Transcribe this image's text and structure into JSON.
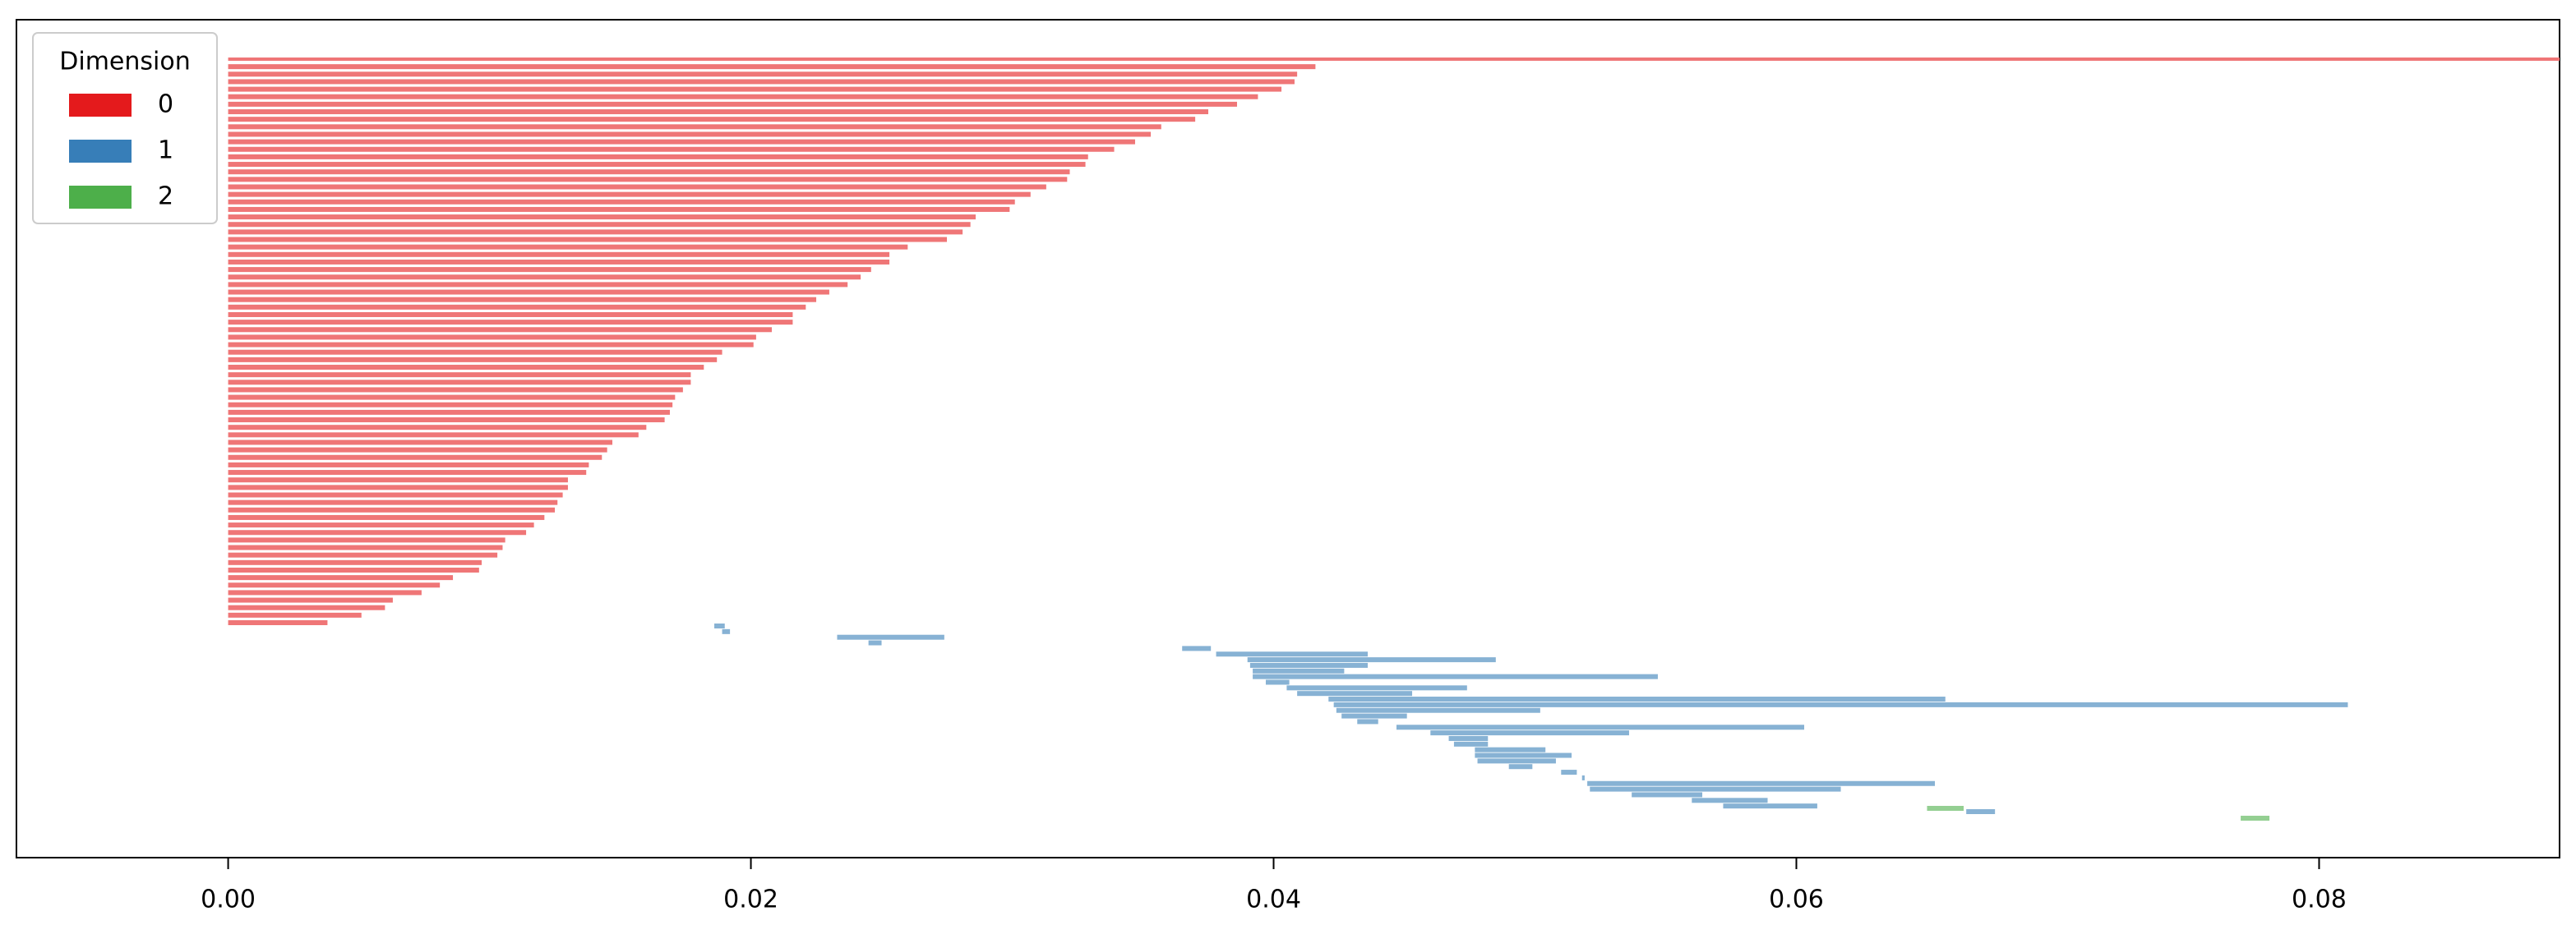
{
  "chart_data": {
    "type": "barcode",
    "legend_title": "Dimension",
    "legend": "upper left",
    "xlim": [
      -0.0081,
      0.0892
    ],
    "xticks": [
      {
        "value": 0,
        "label": "0.00"
      },
      0.02,
      0.04,
      0.06,
      0.08
    ],
    "series": [
      {
        "name": "0",
        "color": "#e41a1c",
        "births": [
          0,
          0,
          0,
          0,
          0,
          0,
          0,
          0,
          0,
          0,
          0,
          0,
          0,
          0,
          0,
          0,
          0,
          0,
          0,
          0,
          0,
          0,
          0,
          0,
          0,
          0,
          0,
          0,
          0,
          0,
          0,
          0,
          0,
          0,
          0,
          0,
          0,
          0,
          0,
          0,
          0,
          0,
          0,
          0,
          0,
          0,
          0,
          0,
          0,
          0,
          0,
          0,
          0,
          0,
          0,
          0,
          0,
          0,
          0,
          0,
          0,
          0,
          0,
          0,
          0,
          0,
          0,
          0,
          0,
          0,
          0,
          0,
          0,
          0,
          0,
          0
        ],
        "deaths": [
          null,
          0.0416,
          0.0409,
          0.0408,
          0.0403,
          0.0394,
          0.0386,
          0.0375,
          0.037,
          0.0357,
          0.0353,
          0.0347,
          0.0339,
          0.0329,
          0.0328,
          0.0322,
          0.0321,
          0.0313,
          0.0307,
          0.0301,
          0.0299,
          0.0286,
          0.0284,
          0.0281,
          0.0275,
          0.026,
          0.0253,
          0.0253,
          0.0246,
          0.0242,
          0.0237,
          0.023,
          0.0225,
          0.0221,
          0.0216,
          0.0216,
          0.0208,
          0.0202,
          0.0201,
          0.0189,
          0.0187,
          0.0182,
          0.0177,
          0.0177,
          0.0174,
          0.0171,
          0.017,
          0.0169,
          0.0167,
          0.016,
          0.0157,
          0.0147,
          0.0145,
          0.0143,
          0.0138,
          0.0137,
          0.013,
          0.013,
          0.0128,
          0.0126,
          0.0125,
          0.0121,
          0.0117,
          0.0114,
          0.0106,
          0.0105,
          0.0103,
          0.0097,
          0.0096,
          0.0086,
          0.0081,
          0.0074,
          0.0063,
          0.006,
          0.0051,
          0.0038
        ]
      },
      {
        "name": "1",
        "color": "#377eb8",
        "births": [
          0.0186,
          0.0189,
          0.0233,
          0.0245,
          0.0365,
          0.0378,
          0.039,
          0.0391,
          0.0392,
          0.0392,
          0.0397,
          0.0405,
          0.0409,
          0.0421,
          0.0423,
          0.0424,
          0.0426,
          0.0432,
          0.0447,
          0.046,
          0.0467,
          0.0469,
          0.0477,
          0.0477,
          0.0478,
          0.049,
          0.051,
          0.0518,
          0.052,
          0.0521,
          0.0537,
          0.056,
          0.0572,
          0.0665
        ],
        "deaths": [
          0.019,
          0.0192,
          0.0274,
          0.025,
          0.0376,
          0.0436,
          0.0485,
          0.0436,
          0.0427,
          0.0547,
          0.0406,
          0.0474,
          0.0453,
          0.0657,
          0.0811,
          0.0502,
          0.0451,
          0.044,
          0.0603,
          0.0536,
          0.0482,
          0.0482,
          0.0504,
          0.0514,
          0.0508,
          0.0499,
          0.0516,
          0.0519,
          0.0653,
          0.0617,
          0.0564,
          0.0589,
          0.0608,
          0.0676
        ]
      },
      {
        "name": "2",
        "color": "#4daf4a",
        "births": [
          0.065,
          0.077
        ],
        "deaths": [
          0.0664,
          0.0781
        ]
      }
    ]
  }
}
